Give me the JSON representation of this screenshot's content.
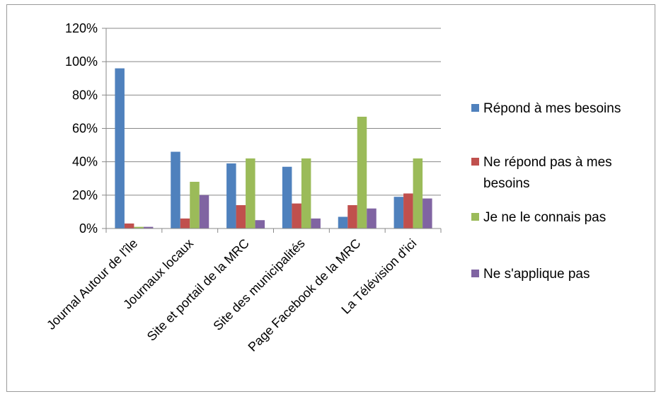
{
  "chart_data": {
    "type": "bar",
    "title": "",
    "xlabel": "",
    "ylabel": "",
    "ylim": [
      0,
      1.2
    ],
    "y_ticks": [
      0,
      0.2,
      0.4,
      0.6,
      0.8,
      1.0,
      1.2
    ],
    "y_tick_labels": [
      "0%",
      "20%",
      "40%",
      "60%",
      "80%",
      "100%",
      "120%"
    ],
    "grid": true,
    "legend_position": "right",
    "categories": [
      "Journal Autour de l'île",
      "Journaux locaux",
      "Site et portail de la MRC",
      "Site des municipalités",
      "Page Facebook de la MRC",
      "La Télévision d'ici"
    ],
    "series": [
      {
        "name": "Répond à mes besoins",
        "color": "#4f81bd",
        "values": [
          0.96,
          0.46,
          0.39,
          0.37,
          0.07,
          0.19
        ]
      },
      {
        "name": "Ne répond pas à mes besoins",
        "color": "#c0504d",
        "values": [
          0.03,
          0.06,
          0.14,
          0.15,
          0.14,
          0.21
        ]
      },
      {
        "name": "Je ne le connais pas",
        "color": "#9bbb59",
        "values": [
          0.01,
          0.28,
          0.42,
          0.42,
          0.67,
          0.42
        ]
      },
      {
        "name": "Ne s'applique pas",
        "color": "#8064a2",
        "values": [
          0.01,
          0.2,
          0.05,
          0.06,
          0.12,
          0.18
        ]
      }
    ]
  }
}
